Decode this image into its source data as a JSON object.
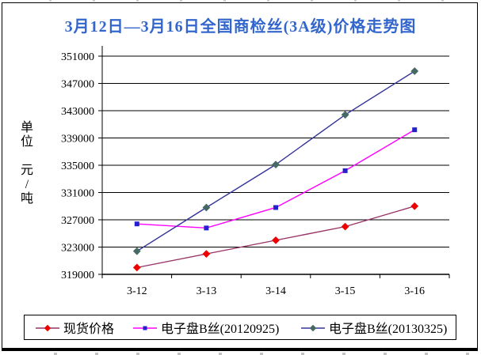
{
  "title": "3月12日—3月16日全国商检丝(3A级)价格走势图",
  "title_color": "#3366CC",
  "y_axis_unit_label": "单\n位\n\n元\n/\n吨",
  "chart_data": {
    "type": "line",
    "title": "3月12日—3月16日全国商检丝(3A级)价格走势图",
    "ylabel": "单位 元/吨",
    "xlabel": "",
    "categories": [
      "3-12",
      "3-13",
      "3-14",
      "3-15",
      "3-16"
    ],
    "series": [
      {
        "name": "现货价格",
        "values": [
          320000,
          322000,
          324000,
          326000,
          329000
        ],
        "line_color": "#993366",
        "marker_color": "#EE0000",
        "marker": "diamond"
      },
      {
        "name": "电子盘B丝(20120925)",
        "values": [
          326400,
          325800,
          328800,
          334200,
          340200
        ],
        "line_color": "#FF00FF",
        "marker_color": "#2222CC",
        "marker": "square"
      },
      {
        "name": "电子盘B丝(20130325)",
        "values": [
          322400,
          328800,
          335100,
          342400,
          348800
        ],
        "line_color": "#333399",
        "marker_color": "#456A66",
        "marker": "diamond"
      }
    ],
    "ylim": [
      319000,
      351000
    ],
    "ytick_step": 4000,
    "yticks": [
      319000,
      323000,
      327000,
      331000,
      335000,
      339000,
      343000,
      347000,
      351000
    ],
    "ytick_labels": [
      "319000",
      "323000",
      "327000",
      "331000",
      "335000",
      "339000",
      "343000",
      "347000",
      "351000"
    ],
    "grid": true,
    "legend_position": "bottom",
    "axis_color": "#000000",
    "grid_color": "#000000"
  }
}
